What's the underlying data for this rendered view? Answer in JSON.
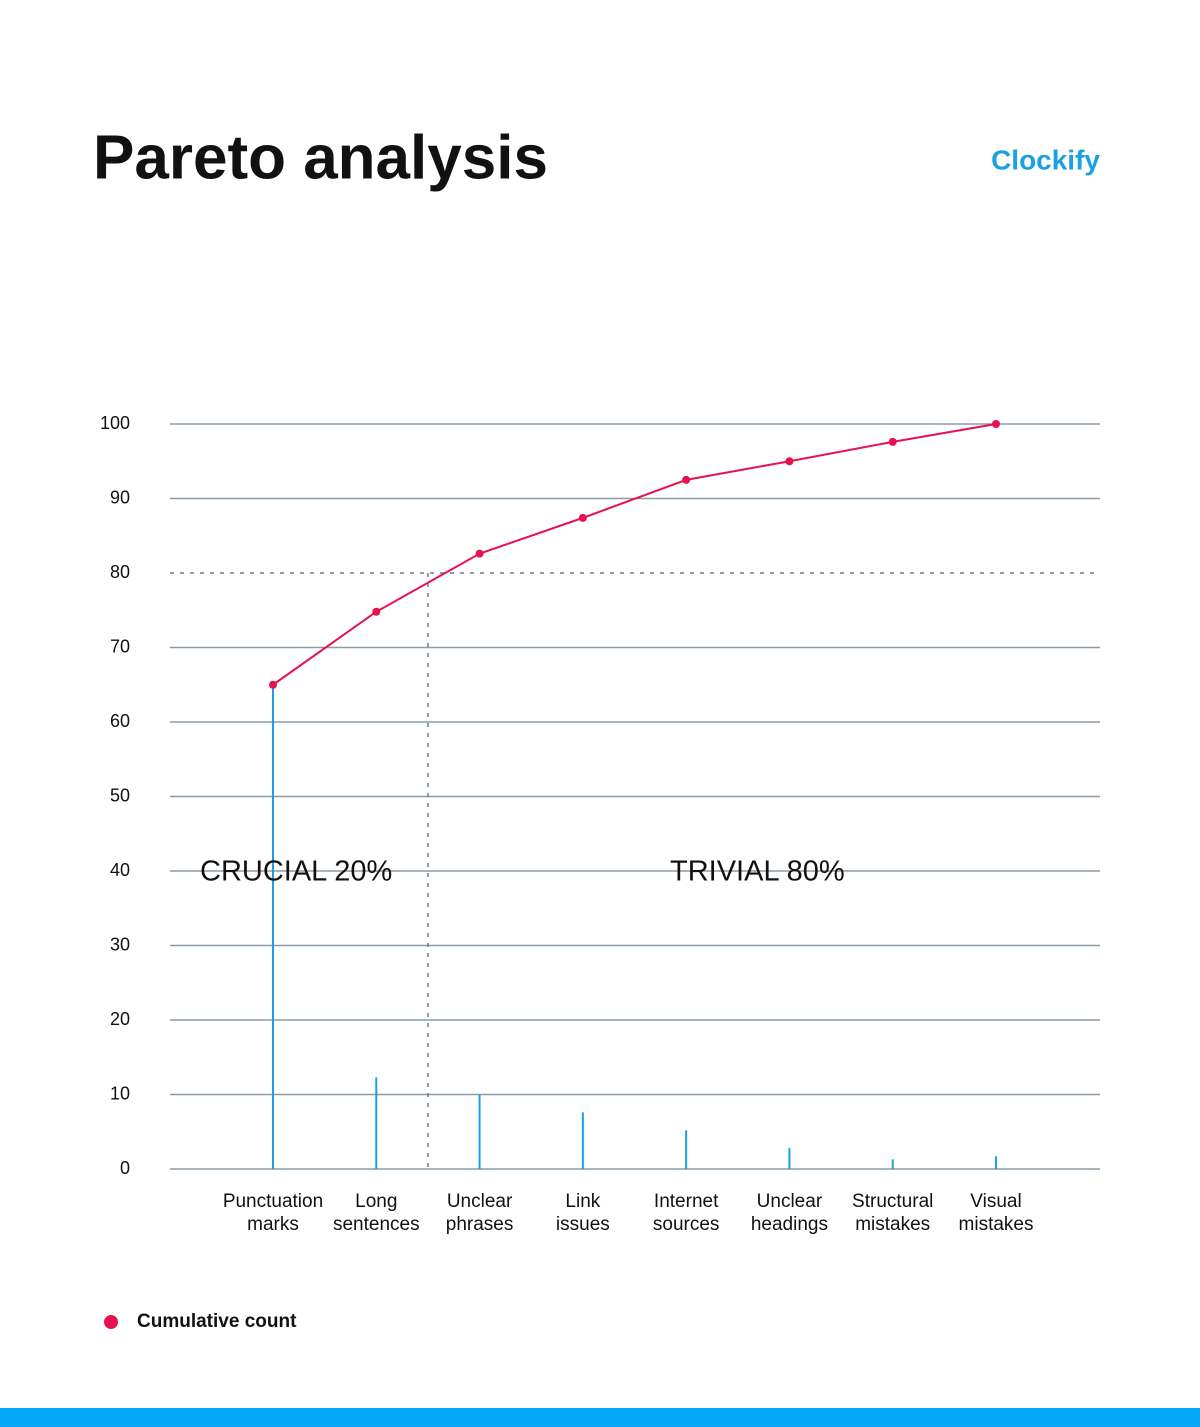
{
  "chart_data": {
    "type": "pareto",
    "title": "Pareto analysis",
    "brand": "Clockify",
    "categories": [
      [
        "Punctuation",
        "marks"
      ],
      [
        "Long",
        "sentences"
      ],
      [
        "Unclear",
        "phrases"
      ],
      [
        "Link",
        "issues"
      ],
      [
        "Internet",
        "sources"
      ],
      [
        "Unclear",
        "headings"
      ],
      [
        "Structural",
        "mistakes"
      ],
      [
        "Visual",
        "mistakes"
      ]
    ],
    "bars": {
      "color": "#1ba1e2",
      "values": [
        65,
        12.3,
        10,
        7.6,
        5.2,
        2.8,
        1.3,
        1.7
      ]
    },
    "series": [
      {
        "name": "Cumulative count",
        "color": "#e8114f",
        "values": [
          65,
          74.8,
          82.6,
          87.4,
          92.5,
          95,
          97.6,
          100
        ]
      }
    ],
    "ylim": [
      0,
      100
    ],
    "yticks": [
      0,
      10,
      20,
      30,
      40,
      50,
      60,
      70,
      80,
      90,
      100
    ],
    "threshold": 80,
    "annotations": [
      "CRUCIAL 20%",
      "TRIVIAL 80%"
    ],
    "grid": true
  }
}
